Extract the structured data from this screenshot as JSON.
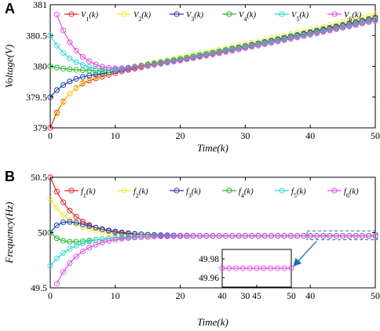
{
  "chart_data": [
    {
      "panel": "A",
      "type": "line",
      "xlabel": "Time(k)",
      "ylabel": "Voltage(V)",
      "xlim": [
        0,
        50
      ],
      "ylim": [
        379,
        381
      ],
      "xticks": [
        "0",
        "10",
        "20",
        "30",
        "40",
        "50"
      ],
      "yticks": [
        "379",
        "379.5",
        "380",
        "380.5",
        "381"
      ],
      "legend_position": "top",
      "x": [
        0,
        50
      ],
      "series": [
        {
          "name": "V1(k)",
          "color": "#e8262a",
          "start": 379.0,
          "mid": 379.9,
          "end": 380.78
        },
        {
          "name": "V2(k)",
          "color": "#f2ea3a",
          "start": 378.95,
          "mid": 379.93,
          "end": 380.84
        },
        {
          "name": "V3(k)",
          "color": "#1f3fb5",
          "start": 379.5,
          "mid": 379.91,
          "end": 380.79
        },
        {
          "name": "V4(k)",
          "color": "#2ab830",
          "start": 380.0,
          "mid": 379.92,
          "end": 380.76
        },
        {
          "name": "V5(k)",
          "color": "#38d6d6",
          "start": 380.5,
          "mid": 379.9,
          "end": 380.75
        },
        {
          "name": "V6(k)",
          "color": "#e050e0",
          "start": 381.2,
          "mid": 379.89,
          "end": 380.74
        }
      ]
    },
    {
      "panel": "B",
      "type": "line",
      "xlabel": "Time(k)",
      "ylabel": "Frequency(Hz)",
      "xlim": [
        0,
        50
      ],
      "ylim": [
        49.5,
        50.5
      ],
      "xticks": [
        "0",
        "10",
        "20",
        "30",
        "40",
        "50"
      ],
      "yticks": [
        "49.5",
        "50",
        "50.5"
      ],
      "legend_position": "top",
      "converged_value": 49.97,
      "series": [
        {
          "name": "f1(k)",
          "color": "#e8262a",
          "start": 50.5
        },
        {
          "name": "f2(k)",
          "color": "#f2ea3a",
          "start": 50.3
        },
        {
          "name": "f3(k)",
          "color": "#1f3fb5",
          "start": 50.0,
          "overshoot": 50.09
        },
        {
          "name": "f4(k)",
          "color": "#2ab830",
          "start": 50.0,
          "undershoot": 49.91
        },
        {
          "name": "f5(k)",
          "color": "#38d6d6",
          "start": 49.7
        },
        {
          "name": "f6(k)",
          "color": "#e050e0",
          "start": 49.4
        }
      ],
      "inset": {
        "xlim": [
          40,
          50
        ],
        "ylim": [
          49.95,
          49.99
        ],
        "xticks": [
          "40",
          "45",
          "50"
        ],
        "yticks": [
          "49.98",
          "49.96"
        ],
        "value": 49.97
      }
    }
  ],
  "labels": {
    "panelA": "A",
    "panelB": "B"
  }
}
